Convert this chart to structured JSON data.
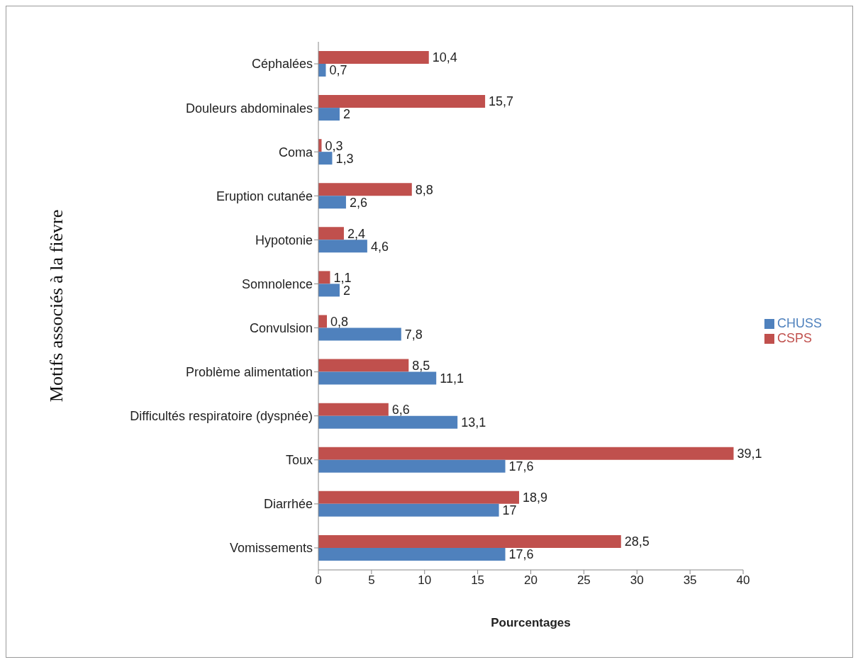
{
  "chart_data": {
    "type": "bar",
    "orientation": "horizontal",
    "xlabel": "Pourcentages",
    "ylabel": "Motifs associés à la fièvre",
    "categories": [
      "Céphalées",
      "Douleurs abdominales",
      "Coma",
      "Eruption cutanée",
      "Hypotonie",
      "Somnolence",
      "Convulsion",
      "Problème alimentation",
      "Difficultés respiratoire (dyspnée)",
      "Toux",
      "Diarrhée",
      "Vomissements"
    ],
    "series": [
      {
        "name": "CSPS",
        "color": "#c0504d",
        "values": [
          10.4,
          15.7,
          0.3,
          8.8,
          2.4,
          1.1,
          0.8,
          8.5,
          6.6,
          39.1,
          18.9,
          28.5
        ],
        "value_labels": [
          "10,4",
          "15,7",
          "0,3",
          "8,8",
          "2,4",
          "1,1",
          "0,8",
          "8,5",
          "6,6",
          "39,1",
          "18,9",
          "28,5"
        ]
      },
      {
        "name": "CHUSS",
        "color": "#4f81bd",
        "values": [
          0.7,
          2,
          1.3,
          2.6,
          4.6,
          2,
          7.8,
          11.1,
          13.1,
          17.6,
          17,
          17.6
        ],
        "value_labels": [
          "0,7",
          "2",
          "1,3",
          "2,6",
          "4,6",
          "2",
          "7,8",
          "11,1",
          "13,1",
          "17,6",
          "17",
          "17,6"
        ]
      }
    ],
    "xlim": [
      0,
      40
    ],
    "xticks": [
      0,
      5,
      10,
      15,
      20,
      25,
      30,
      35,
      40
    ],
    "grid": false,
    "legend": "right"
  }
}
